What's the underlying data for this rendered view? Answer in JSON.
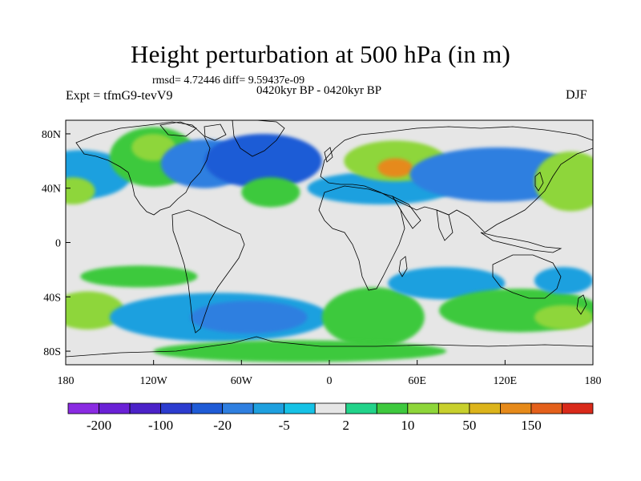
{
  "title": "Height perturbation at 500 hPa (in m)",
  "stats_line": "rmsd= 4.72446 diff= 9.59437e-09",
  "period_label": "0420kyr BP - 0420kyr BP",
  "experiment_label": "Expt = tfmG9-tevV9",
  "season_label": "DJF",
  "map": {
    "projection": "cylindrical equidistant",
    "lon_range": [
      -180,
      180
    ],
    "lat_range": [
      -90,
      90
    ],
    "lon_ticks": [
      {
        "value": -180,
        "label": "180"
      },
      {
        "value": -120,
        "label": "120W"
      },
      {
        "value": -60,
        "label": "60W"
      },
      {
        "value": 0,
        "label": "0"
      },
      {
        "value": 60,
        "label": "60E"
      },
      {
        "value": 120,
        "label": "120E"
      },
      {
        "value": 180,
        "label": "180"
      }
    ],
    "lat_ticks": [
      {
        "value": 80,
        "label": "80N"
      },
      {
        "value": 40,
        "label": "40N"
      },
      {
        "value": 0,
        "label": "0"
      },
      {
        "value": -40,
        "label": "40S"
      },
      {
        "value": -80,
        "label": "80S"
      }
    ],
    "background_color": "#e6e6e6"
  },
  "colorbar": {
    "colors": [
      "#8a2be2",
      "#6a21d6",
      "#4b22c8",
      "#2c3ccf",
      "#1f5bd6",
      "#2f7fe0",
      "#1ea0df",
      "#16c2e6",
      "#e6e6e6",
      "#22d38a",
      "#3ec93e",
      "#8ed63a",
      "#c8d02d",
      "#dcb41b",
      "#e68a1a",
      "#e4601b",
      "#d92a1a"
    ],
    "labels": [
      {
        "boundary": 1,
        "text": "-200"
      },
      {
        "boundary": 3,
        "text": "-100"
      },
      {
        "boundary": 5,
        "text": "-20"
      },
      {
        "boundary": 7,
        "text": "-5"
      },
      {
        "boundary": 9,
        "text": "2"
      },
      {
        "boundary": 11,
        "text": "10"
      },
      {
        "boundary": 13,
        "text": "50"
      },
      {
        "boundary": 15,
        "text": "150"
      }
    ]
  },
  "anomaly_regions": [
    {
      "lon": -170,
      "lat": 50,
      "rx": 35,
      "ry": 18,
      "level": "light-blue"
    },
    {
      "lon": -175,
      "lat": 38,
      "rx": 15,
      "ry": 10,
      "level": "yellow-green"
    },
    {
      "lon": -120,
      "lat": 63,
      "rx": 30,
      "ry": 22,
      "level": "green"
    },
    {
      "lon": -120,
      "lat": 70,
      "rx": 15,
      "ry": 10,
      "level": "yellow-green"
    },
    {
      "lon": -85,
      "lat": 58,
      "rx": 30,
      "ry": 18,
      "level": "blue"
    },
    {
      "lon": -45,
      "lat": 60,
      "rx": 40,
      "ry": 20,
      "level": "medium-blue"
    },
    {
      "lon": -40,
      "lat": 37,
      "rx": 20,
      "ry": 11,
      "level": "green"
    },
    {
      "lon": 35,
      "lat": 40,
      "rx": 50,
      "ry": 12,
      "level": "light-blue"
    },
    {
      "lon": 45,
      "lat": 60,
      "rx": 35,
      "ry": 15,
      "level": "yellow-green"
    },
    {
      "lon": 45,
      "lat": 55,
      "rx": 12,
      "ry": 7,
      "level": "orange"
    },
    {
      "lon": 115,
      "lat": 50,
      "rx": 60,
      "ry": 20,
      "level": "blue"
    },
    {
      "lon": 165,
      "lat": 45,
      "rx": 25,
      "ry": 22,
      "level": "yellow-green"
    },
    {
      "lon": -130,
      "lat": -25,
      "rx": 40,
      "ry": 8,
      "level": "green"
    },
    {
      "lon": -165,
      "lat": -50,
      "rx": 25,
      "ry": 14,
      "level": "yellow-green"
    },
    {
      "lon": -75,
      "lat": -55,
      "rx": 75,
      "ry": 18,
      "level": "light-blue"
    },
    {
      "lon": -55,
      "lat": -55,
      "rx": 40,
      "ry": 12,
      "level": "blue"
    },
    {
      "lon": 30,
      "lat": -55,
      "rx": 35,
      "ry": 22,
      "level": "green"
    },
    {
      "lon": 80,
      "lat": -30,
      "rx": 40,
      "ry": 12,
      "level": "light-blue"
    },
    {
      "lon": 130,
      "lat": -50,
      "rx": 55,
      "ry": 16,
      "level": "green"
    },
    {
      "lon": 160,
      "lat": -55,
      "rx": 20,
      "ry": 9,
      "level": "yellow-green"
    },
    {
      "lon": 160,
      "lat": -28,
      "rx": 20,
      "ry": 10,
      "level": "light-blue"
    },
    {
      "lon": -20,
      "lat": -80,
      "rx": 100,
      "ry": 8,
      "level": "green"
    }
  ]
}
